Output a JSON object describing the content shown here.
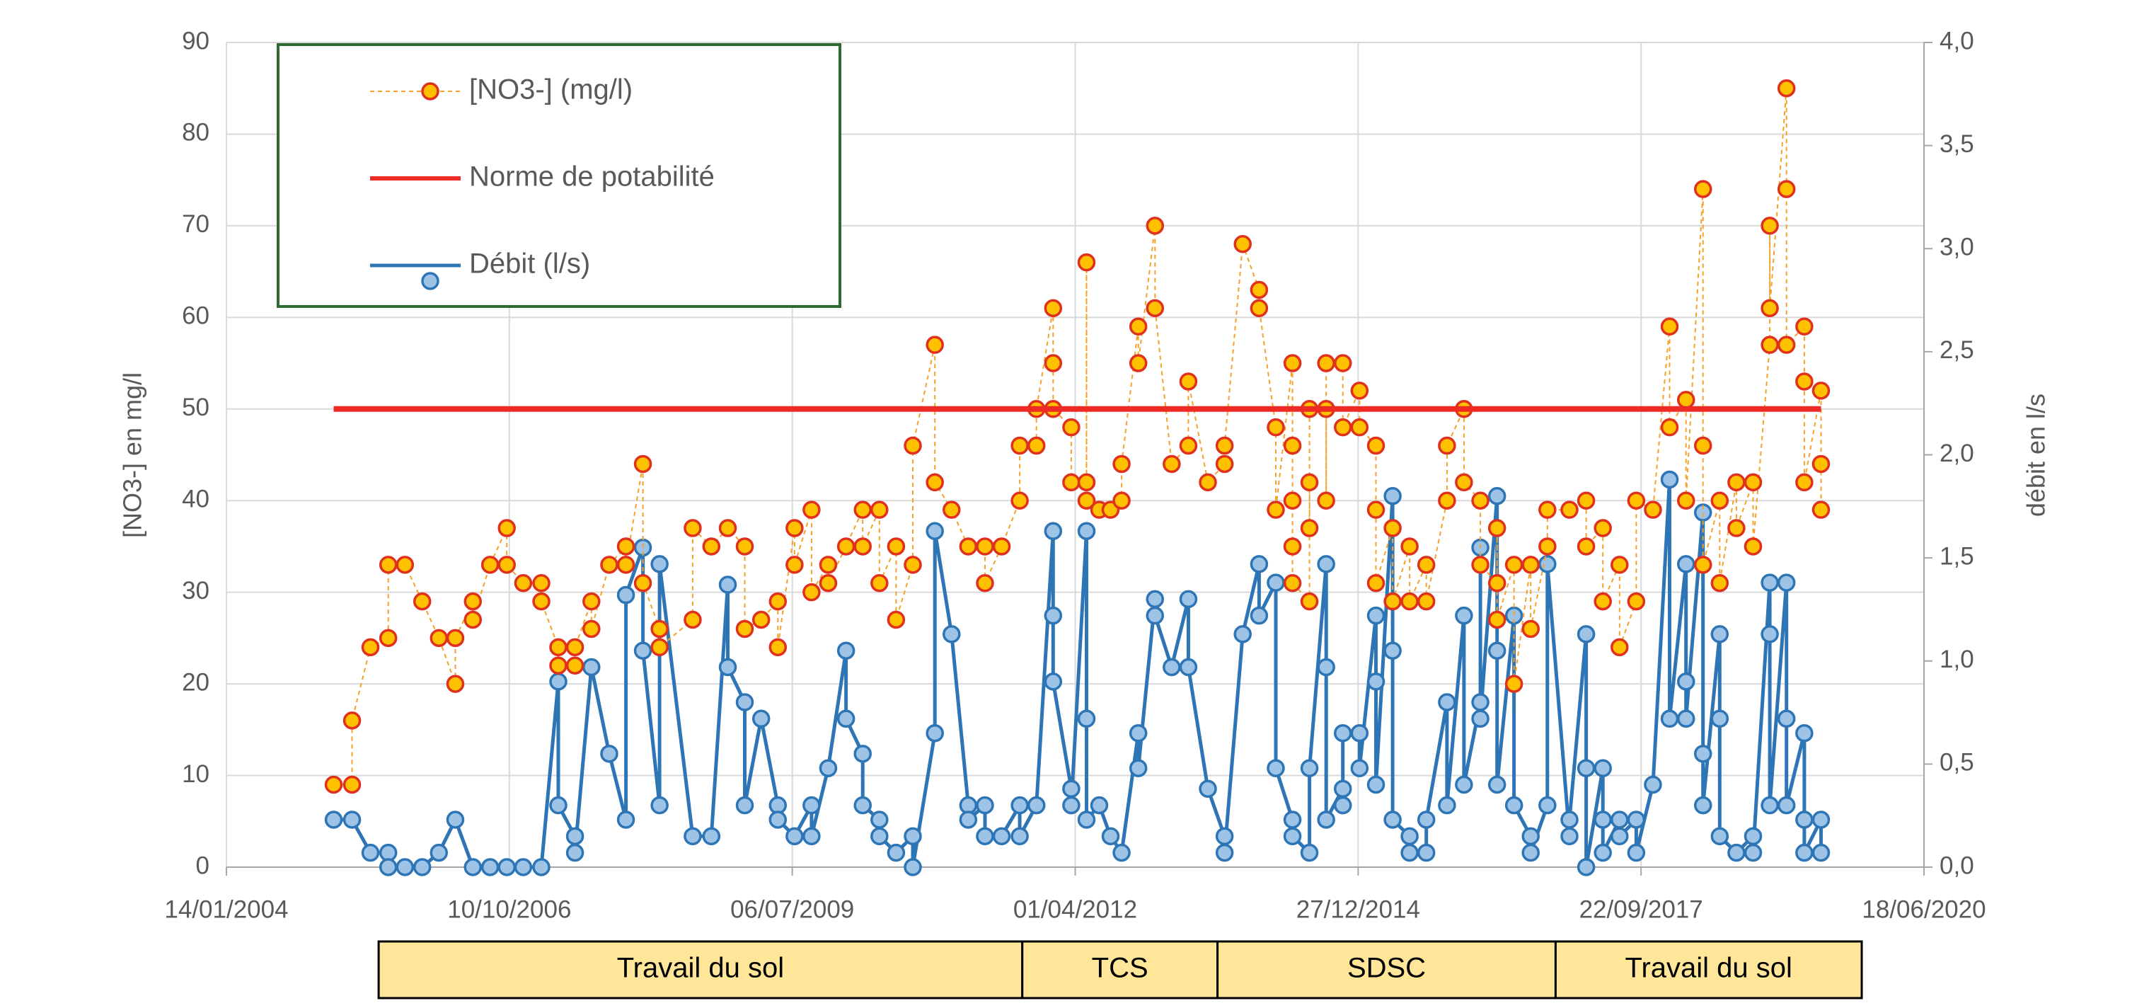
{
  "chart_data": {
    "type": "line",
    "ylabel": "[NO3-] en mg/l",
    "y2label": "débit en l/s",
    "xlim": [
      "2004-01-14",
      "2020-06-18"
    ],
    "xticks": [
      {
        "value": "2004-01-14",
        "label": "14/01/2004"
      },
      {
        "value": "2006-10-10",
        "label": "10/10/2006"
      },
      {
        "value": "2009-07-06",
        "label": "06/07/2009"
      },
      {
        "value": "2012-04-01",
        "label": "01/04/2012"
      },
      {
        "value": "2014-12-27",
        "label": "27/12/2014"
      },
      {
        "value": "2017-09-22",
        "label": "22/09/2017"
      },
      {
        "value": "2020-06-18",
        "label": "18/06/2020"
      }
    ],
    "ylim": [
      0,
      90
    ],
    "yticks": [
      0,
      10,
      20,
      30,
      40,
      50,
      60,
      70,
      80,
      90
    ],
    "y2lim": [
      0,
      4
    ],
    "y2ticks": [
      {
        "value": 0,
        "label": "0,0"
      },
      {
        "value": 0.5,
        "label": "0,5"
      },
      {
        "value": 1,
        "label": "1,0"
      },
      {
        "value": 1.5,
        "label": "1,5"
      },
      {
        "value": 2,
        "label": "2,0"
      },
      {
        "value": 2.5,
        "label": "2,5"
      },
      {
        "value": 3,
        "label": "3,0"
      },
      {
        "value": 3.5,
        "label": "3,5"
      },
      {
        "value": 4,
        "label": "4,0"
      }
    ],
    "grid": true,
    "legend": "upper left",
    "legend_border_color": "#2f6b2f",
    "series": [
      {
        "name": "[NO3-] (mg/l)",
        "axis": "y",
        "color": "#f4a22b",
        "line_style": "dashed",
        "line_width": 2,
        "marker": true,
        "marker_face": "#ffc000",
        "marker_edge": "#e0301e",
        "x": [
          "2005-01-27",
          "2005-04-02",
          "2005-04-02",
          "2005-06-06",
          "2005-08-08",
          "2005-08-08",
          "2005-10-06",
          "2005-12-06",
          "2006-02-03",
          "2006-04-02",
          "2006-04-02",
          "2006-06-03",
          "2006-06-03",
          "2006-08-03",
          "2006-10-01",
          "2006-10-01",
          "2006-11-28",
          "2007-01-31",
          "2007-01-31",
          "2007-04-01",
          "2007-04-01",
          "2007-05-30",
          "2007-05-30",
          "2007-07-27",
          "2007-07-27",
          "2007-09-28",
          "2007-11-26",
          "2007-11-26",
          "2008-01-25",
          "2008-01-25",
          "2008-03-24",
          "2008-03-24",
          "2008-07-19",
          "2008-07-19",
          "2008-09-23",
          "2008-11-20",
          "2009-01-19",
          "2009-01-19",
          "2009-03-18",
          "2009-05-16",
          "2009-05-16",
          "2009-07-14",
          "2009-07-14",
          "2009-09-12",
          "2009-09-12",
          "2009-11-10",
          "2009-11-10",
          "2010-01-12",
          "2010-03-12",
          "2010-03-12",
          "2010-05-10",
          "2010-05-10",
          "2010-07-08",
          "2010-07-08",
          "2010-09-05",
          "2010-09-05",
          "2010-11-22",
          "2010-11-22",
          "2011-01-20",
          "2011-03-20",
          "2011-05-18",
          "2011-05-18",
          "2011-07-16",
          "2011-09-18",
          "2011-09-18",
          "2011-11-16",
          "2011-11-16",
          "2012-01-14",
          "2012-01-14",
          "2012-01-14",
          "2012-03-18",
          "2012-03-18",
          "2012-05-11",
          "2012-05-11",
          "2012-05-11",
          "2012-06-25",
          "2012-08-04",
          "2012-09-12",
          "2012-09-12",
          "2012-11-10",
          "2012-11-10",
          "2013-01-08",
          "2013-01-08",
          "2013-03-08",
          "2013-05-06",
          "2013-05-06",
          "2013-07-14",
          "2013-09-11",
          "2013-09-11",
          "2013-11-14",
          "2014-01-11",
          "2014-01-11",
          "2014-03-11",
          "2014-03-11",
          "2014-05-09",
          "2014-05-09",
          "2014-05-09",
          "2014-05-09",
          "2014-05-09",
          "2014-07-08",
          "2014-07-08",
          "2014-07-08",
          "2014-07-08",
          "2014-09-05",
          "2014-09-05",
          "2014-09-05",
          "2014-11-03",
          "2014-11-03",
          "2015-01-01",
          "2015-01-01",
          "2015-02-28",
          "2015-02-28",
          "2015-02-28",
          "2015-04-28",
          "2015-04-28",
          "2015-06-27",
          "2015-06-27",
          "2015-08-25",
          "2015-08-25",
          "2015-11-06",
          "2015-11-06",
          "2016-01-05",
          "2016-01-05",
          "2016-03-03",
          "2016-03-03",
          "2016-05-01",
          "2016-05-01",
          "2016-05-01",
          "2016-06-30",
          "2016-06-30",
          "2016-08-28",
          "2016-08-28",
          "2016-10-26",
          "2016-10-26",
          "2017-01-12",
          "2017-03-12",
          "2017-03-12",
          "2017-05-10",
          "2017-05-10",
          "2017-07-08",
          "2017-07-08",
          "2017-09-05",
          "2017-09-05",
          "2017-11-03",
          "2018-01-01",
          "2018-01-01",
          "2018-02-28",
          "2018-02-28",
          "2018-04-29",
          "2018-04-29",
          "2018-04-29",
          "2018-06-27",
          "2018-06-27",
          "2018-08-25",
          "2018-08-25",
          "2018-10-23",
          "2018-10-23",
          "2018-12-21",
          "2018-12-21",
          "2018-12-21",
          "2019-02-18",
          "2019-02-18",
          "2019-02-18",
          "2019-04-22",
          "2019-04-22",
          "2019-04-22",
          "2019-06-20",
          "2019-06-20",
          "2019-06-20"
        ],
        "values": [
          9,
          9,
          16,
          24,
          25,
          33,
          33,
          29,
          25,
          20,
          25,
          29,
          27,
          33,
          37,
          33,
          31,
          31,
          29,
          24,
          22,
          22,
          24,
          29,
          26,
          33,
          35,
          33,
          44,
          31,
          26,
          24,
          27,
          37,
          35,
          37,
          35,
          26,
          27,
          29,
          24,
          37,
          33,
          39,
          30,
          33,
          31,
          35,
          39,
          35,
          39,
          31,
          35,
          27,
          33,
          46,
          57,
          42,
          39,
          35,
          35,
          31,
          35,
          40,
          46,
          46,
          50,
          61,
          55,
          50,
          48,
          42,
          42,
          66,
          40,
          39,
          39,
          40,
          44,
          59,
          55,
          70,
          61,
          44,
          46,
          53,
          42,
          44,
          46,
          68,
          63,
          61,
          48,
          39,
          55,
          46,
          40,
          35,
          31,
          29,
          42,
          37,
          50,
          50,
          40,
          55,
          55,
          48,
          52,
          48,
          46,
          39,
          31,
          37,
          29,
          35,
          29,
          33,
          29,
          40,
          46,
          50,
          42,
          40,
          33,
          31,
          37,
          27,
          33,
          20,
          33,
          26,
          35,
          39,
          39,
          40,
          35,
          37,
          29,
          33,
          24,
          29,
          40,
          39,
          59,
          48,
          51,
          40,
          74,
          46,
          33,
          40,
          31,
          42,
          37,
          42,
          35,
          57,
          70,
          61,
          85,
          74,
          57,
          59,
          53,
          42,
          52,
          44,
          39
        ]
      },
      {
        "name": "Norme de potabilité",
        "axis": "y",
        "color": "#ee2a24",
        "line_style": "solid",
        "line_width": 8,
        "marker": false,
        "x": [
          "2005-01-27",
          "2019-06-20"
        ],
        "values": [
          50,
          50
        ]
      },
      {
        "name": "Débit (l/s)",
        "axis": "y2",
        "color": "#2e75b6",
        "line_style": "solid",
        "line_width": 5,
        "marker": true,
        "marker_face": "#9dc3e6",
        "marker_edge": "#2e75b6",
        "x": [
          "2005-01-27",
          "2005-04-02",
          "2005-06-06",
          "2005-08-08",
          "2005-08-08",
          "2005-10-06",
          "2005-12-06",
          "2006-02-03",
          "2006-04-02",
          "2006-06-03",
          "2006-08-03",
          "2006-10-01",
          "2006-11-28",
          "2007-01-31",
          "2007-04-01",
          "2007-04-01",
          "2007-05-30",
          "2007-05-30",
          "2007-07-27",
          "2007-09-28",
          "2007-11-26",
          "2007-11-26",
          "2008-01-25",
          "2008-01-25",
          "2008-03-24",
          "2008-03-24",
          "2008-07-19",
          "2008-09-23",
          "2008-11-20",
          "2008-11-20",
          "2009-01-19",
          "2009-01-19",
          "2009-03-18",
          "2009-05-16",
          "2009-05-16",
          "2009-07-14",
          "2009-09-12",
          "2009-09-12",
          "2009-11-10",
          "2010-01-12",
          "2010-01-12",
          "2010-03-12",
          "2010-03-12",
          "2010-05-10",
          "2010-05-10",
          "2010-07-08",
          "2010-09-05",
          "2010-09-05",
          "2010-11-22",
          "2010-11-22",
          "2011-01-20",
          "2011-03-20",
          "2011-03-20",
          "2011-05-18",
          "2011-05-18",
          "2011-07-16",
          "2011-09-18",
          "2011-09-18",
          "2011-11-16",
          "2012-01-14",
          "2012-01-14",
          "2012-01-14",
          "2012-03-18",
          "2012-03-18",
          "2012-05-11",
          "2012-05-11",
          "2012-05-11",
          "2012-06-25",
          "2012-08-04",
          "2012-09-12",
          "2012-11-10",
          "2012-11-10",
          "2013-01-08",
          "2013-01-08",
          "2013-03-08",
          "2013-05-06",
          "2013-05-06",
          "2013-07-14",
          "2013-09-11",
          "2013-09-11",
          "2013-11-14",
          "2014-01-11",
          "2014-01-11",
          "2014-03-11",
          "2014-03-11",
          "2014-05-09",
          "2014-05-09",
          "2014-07-08",
          "2014-07-08",
          "2014-09-05",
          "2014-09-05",
          "2014-09-05",
          "2014-11-03",
          "2014-11-03",
          "2014-11-03",
          "2015-01-01",
          "2015-01-01",
          "2015-02-28",
          "2015-02-28",
          "2015-02-28",
          "2015-04-28",
          "2015-04-28",
          "2015-04-28",
          "2015-06-27",
          "2015-06-27",
          "2015-08-25",
          "2015-08-25",
          "2015-11-06",
          "2015-11-06",
          "2016-01-05",
          "2016-01-05",
          "2016-03-03",
          "2016-03-03",
          "2016-03-03",
          "2016-05-01",
          "2016-05-01",
          "2016-05-01",
          "2016-06-30",
          "2016-06-30",
          "2016-08-28",
          "2016-08-28",
          "2016-10-26",
          "2016-10-26",
          "2017-01-12",
          "2017-01-12",
          "2017-03-12",
          "2017-03-12",
          "2017-03-12",
          "2017-05-10",
          "2017-05-10",
          "2017-05-10",
          "2017-07-08",
          "2017-07-08",
          "2017-09-05",
          "2017-09-05",
          "2017-11-03",
          "2018-01-01",
          "2018-01-01",
          "2018-02-28",
          "2018-02-28",
          "2018-02-28",
          "2018-04-29",
          "2018-04-29",
          "2018-04-29",
          "2018-06-27",
          "2018-06-27",
          "2018-06-27",
          "2018-08-25",
          "2018-10-23",
          "2018-10-23",
          "2018-12-21",
          "2018-12-21",
          "2018-12-21",
          "2019-02-18",
          "2019-02-18",
          "2019-02-18",
          "2019-04-22",
          "2019-04-22",
          "2019-04-22",
          "2019-06-20",
          "2019-06-20"
        ],
        "values": [
          0.23,
          0.23,
          0.07,
          0.07,
          0,
          0,
          0,
          0.07,
          0.23,
          0,
          0,
          0,
          0,
          0,
          0.9,
          0.3,
          0.15,
          0.07,
          0.97,
          0.55,
          0.23,
          1.32,
          1.55,
          1.05,
          0.3,
          1.47,
          0.15,
          0.15,
          1.37,
          0.97,
          0.8,
          0.3,
          0.72,
          0.3,
          0.23,
          0.15,
          0.3,
          0.15,
          0.48,
          1.05,
          0.72,
          0.55,
          0.3,
          0.23,
          0.15,
          0.07,
          0.15,
          0,
          0.65,
          1.63,
          1.13,
          0.3,
          0.23,
          0.3,
          0.15,
          0.15,
          0.3,
          0.15,
          0.3,
          1.63,
          1.22,
          0.9,
          0.38,
          0.3,
          1.63,
          0.72,
          0.23,
          0.3,
          0.15,
          0.07,
          0.65,
          0.48,
          1.3,
          1.22,
          0.97,
          1.3,
          0.97,
          0.38,
          0.15,
          0.07,
          1.13,
          1.47,
          1.22,
          1.38,
          0.48,
          0.23,
          0.15,
          0.07,
          0.48,
          1.47,
          0.97,
          0.23,
          0.38,
          0.3,
          0.65,
          0.65,
          0.48,
          1.22,
          0.9,
          0.4,
          1.8,
          1.05,
          0.23,
          0.15,
          0.07,
          0.07,
          0.23,
          0.8,
          0.3,
          1.22,
          0.4,
          0.8,
          1.55,
          0.72,
          1.8,
          1.05,
          0.4,
          1.22,
          0.3,
          0.15,
          0.07,
          0.3,
          1.47,
          0.15,
          0.23,
          1.13,
          0.48,
          0,
          0.48,
          0.23,
          0.07,
          0.23,
          0.15,
          0.23,
          0.07,
          0.4,
          1.88,
          0.72,
          1.47,
          0.9,
          0.72,
          1.72,
          0.55,
          0.3,
          1.13,
          0.72,
          0.15,
          0.07,
          0.15,
          0.07,
          1.38,
          1.13,
          0.3,
          1.38,
          0.72,
          0.3,
          0.65,
          0.23,
          0.07,
          0.23,
          0.07
        ]
      }
    ],
    "periods": [
      {
        "label": "Travail du sol",
        "start": "2005-07-05",
        "end": "2011-09-27"
      },
      {
        "label": "TCS",
        "start": "2011-09-27",
        "end": "2013-08-17"
      },
      {
        "label": "SDSC",
        "start": "2013-08-17",
        "end": "2016-11-24"
      },
      {
        "label": "Travail du sol",
        "start": "2016-11-24",
        "end": "2019-11-11"
      }
    ],
    "period_color": "#ffe699"
  }
}
